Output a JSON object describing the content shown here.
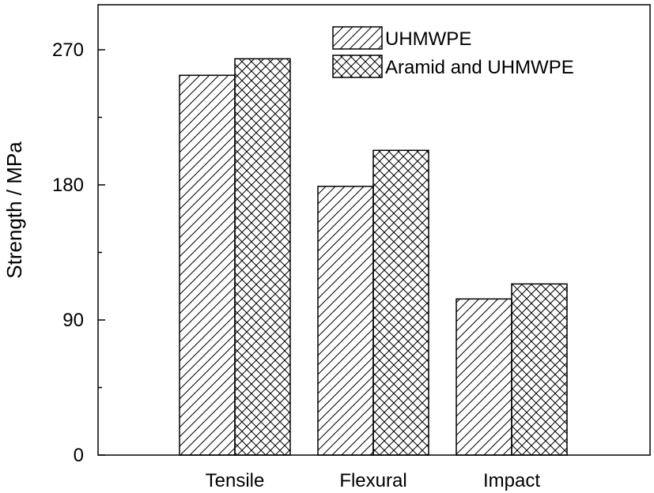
{
  "chart_data": {
    "type": "bar",
    "title": "",
    "xlabel": "",
    "ylabel": "Strength / MPa",
    "categories": [
      "Tensile",
      "Flexural",
      "Impact"
    ],
    "series": [
      {
        "name": "UHMWPE",
        "pattern": "diagonal-hatch",
        "values": [
          253,
          179,
          104
        ]
      },
      {
        "name": "Aramid and UHMWPE",
        "pattern": "cross-hatch",
        "values": [
          264,
          203,
          114
        ]
      }
    ],
    "ylim": [
      0,
      300
    ],
    "yticks": [
      0,
      90,
      180,
      270
    ],
    "grid": false,
    "legend_position": "top-right",
    "colors": {
      "bar_fill": "#ffffff",
      "bar_stroke": "#000000",
      "hatch": "#000000"
    }
  }
}
